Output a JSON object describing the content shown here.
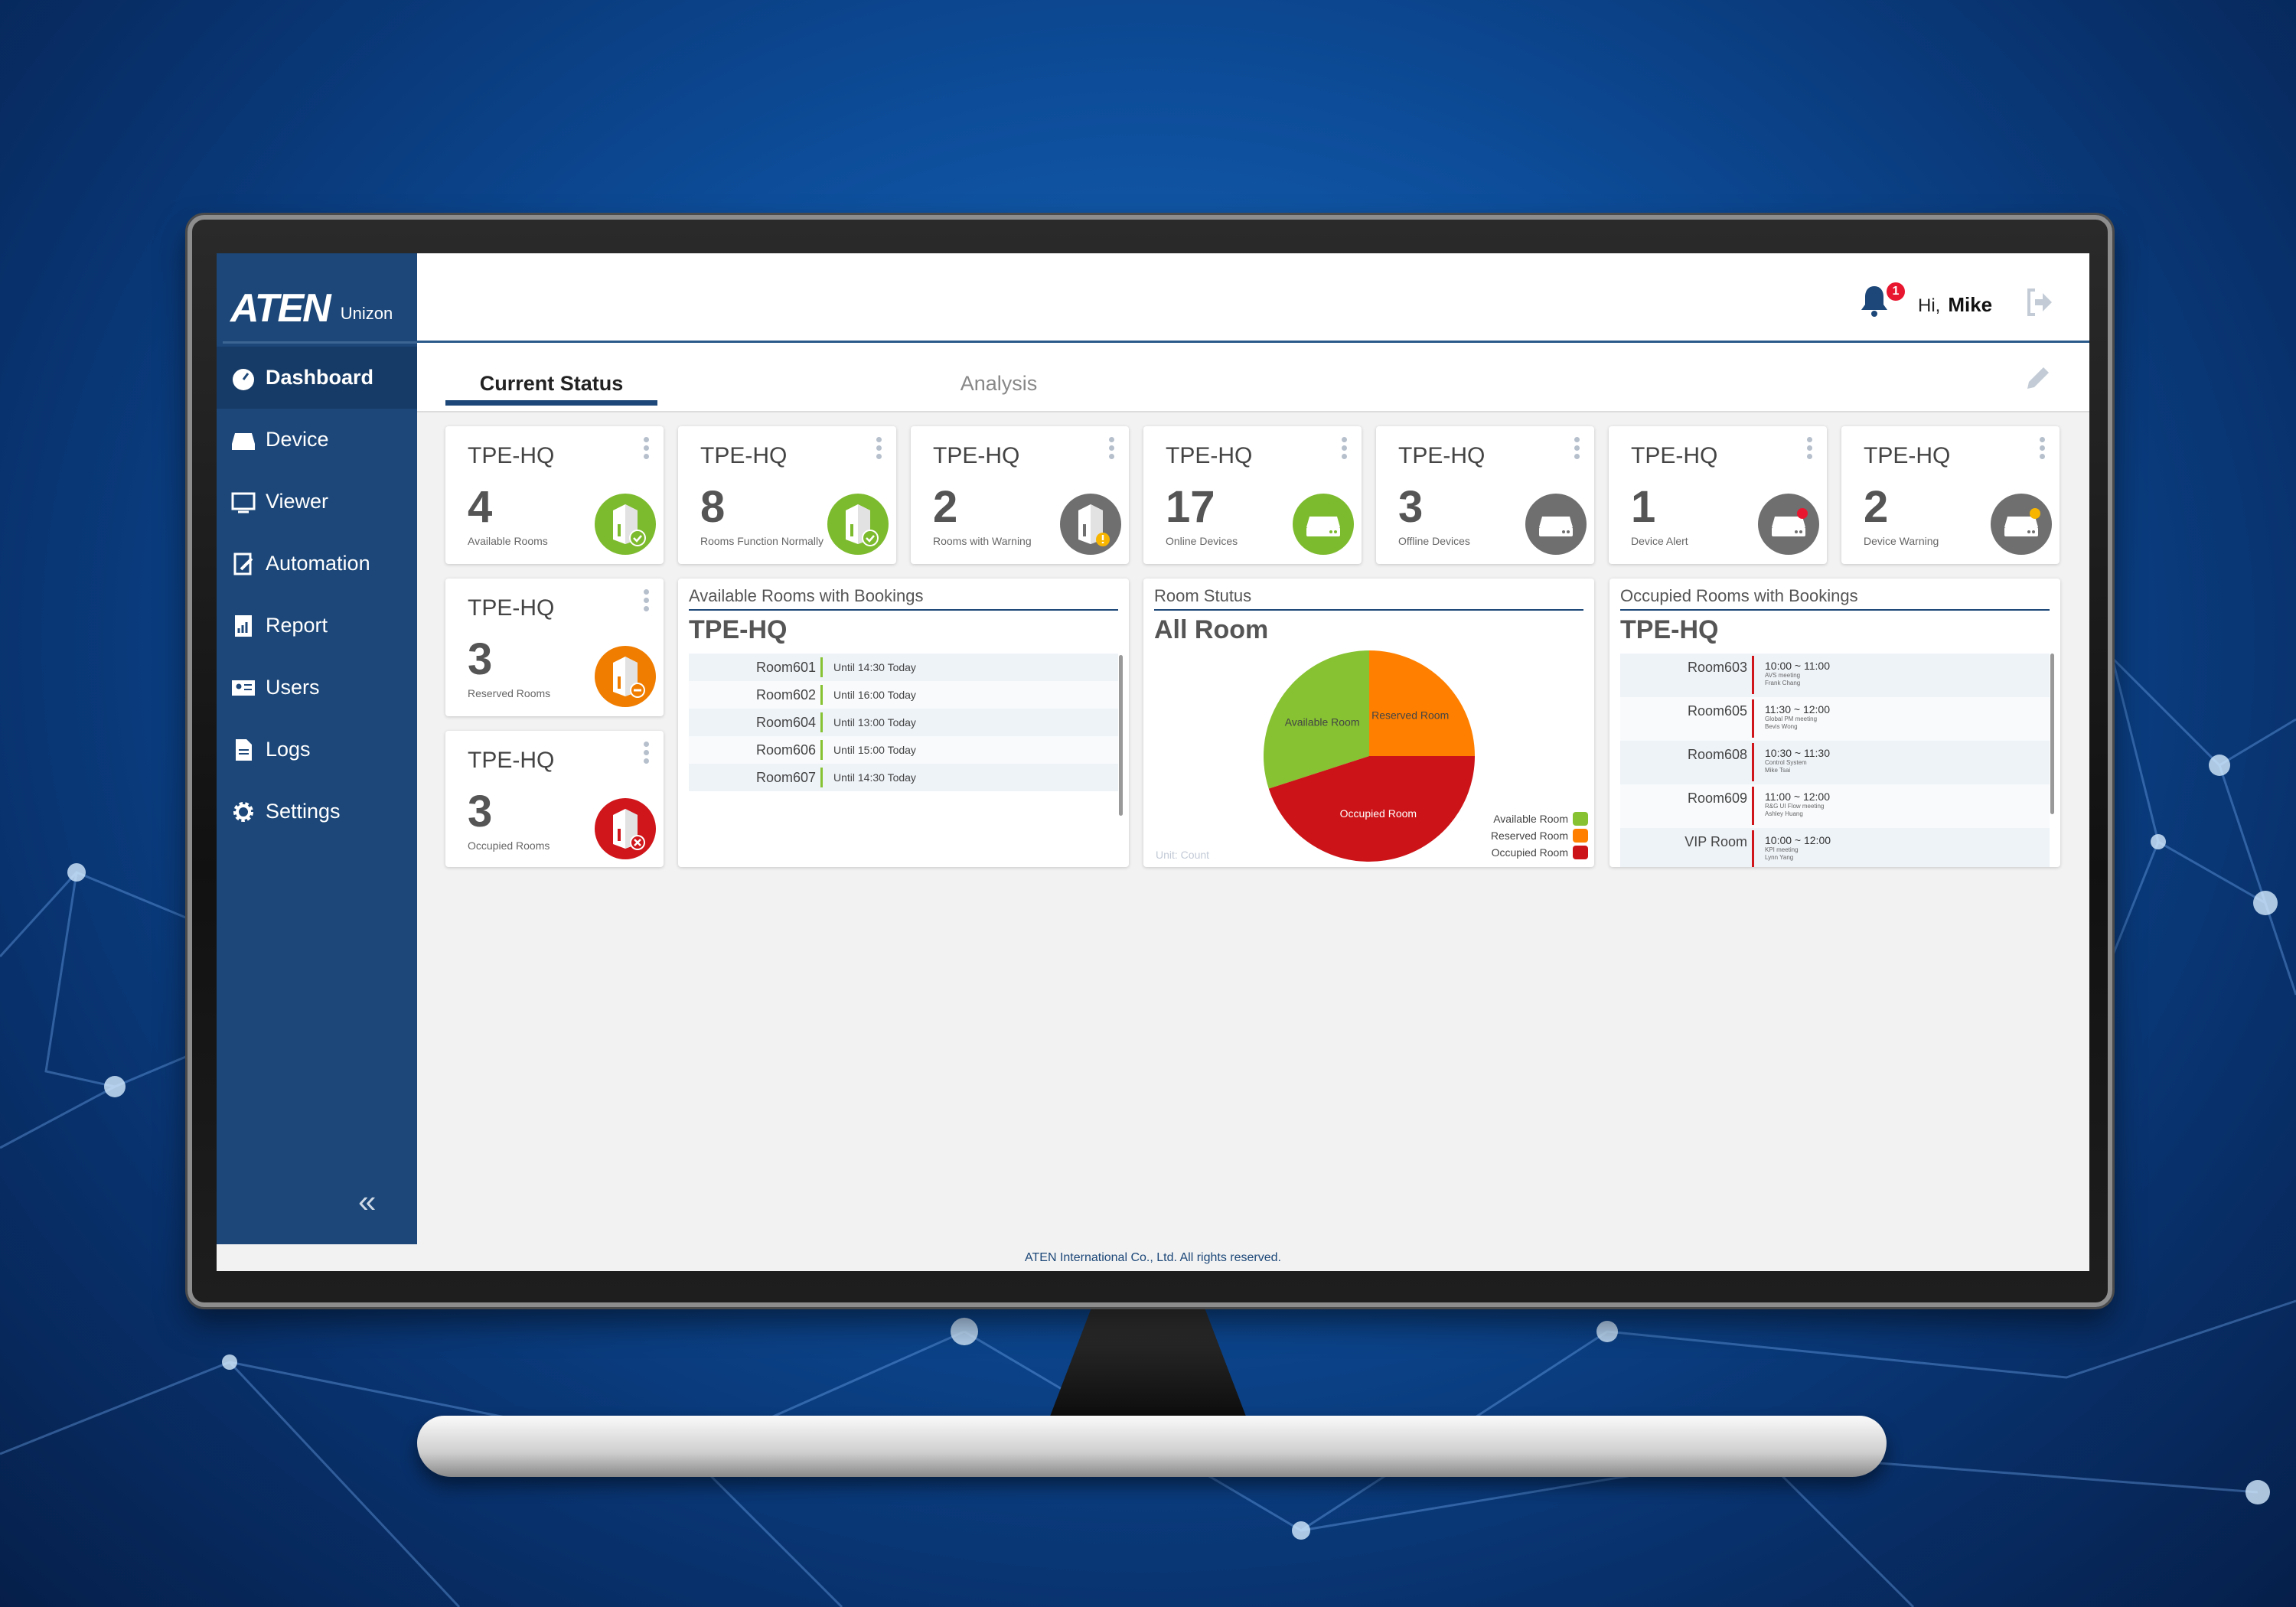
{
  "app": {
    "brand": "ATEN",
    "product": "Unizon"
  },
  "sidebar": {
    "items": [
      {
        "label": "Dashboard",
        "icon": "dashboard-icon",
        "active": true
      },
      {
        "label": "Device",
        "icon": "device-icon"
      },
      {
        "label": "Viewer",
        "icon": "viewer-icon"
      },
      {
        "label": "Automation",
        "icon": "automation-icon"
      },
      {
        "label": "Report",
        "icon": "report-icon"
      },
      {
        "label": "Users",
        "icon": "users-icon"
      },
      {
        "label": "Logs",
        "icon": "logs-icon"
      },
      {
        "label": "Settings",
        "icon": "gear-icon"
      }
    ],
    "collapse_label": "«"
  },
  "header": {
    "notification_count": "1",
    "greeting": "Hi,",
    "user": "Mike"
  },
  "tabs": [
    {
      "label": "Current Status",
      "active": true
    },
    {
      "label": "Analysis"
    }
  ],
  "cards": [
    {
      "title": "TPE-HQ",
      "value": "4",
      "label": "Available Rooms",
      "icon": "room",
      "color": "#7dbb2e",
      "badge": "check"
    },
    {
      "title": "TPE-HQ",
      "value": "8",
      "label": "Rooms Function Normally",
      "icon": "room",
      "color": "#7dbb2e",
      "badge": "check"
    },
    {
      "title": "TPE-HQ",
      "value": "2",
      "label": "Rooms with Warning",
      "icon": "room",
      "color": "#6f6f6f",
      "badge": "warning"
    },
    {
      "title": "TPE-HQ",
      "value": "17",
      "label": "Online Devices",
      "icon": "device",
      "color": "#7dbb2e",
      "badge": "none"
    },
    {
      "title": "TPE-HQ",
      "value": "3",
      "label": "Offline Devices",
      "icon": "device",
      "color": "#6f6f6f",
      "badge": "none"
    },
    {
      "title": "TPE-HQ",
      "value": "1",
      "label": "Device Alert",
      "icon": "device",
      "color": "#6f6f6f",
      "badge": "alert"
    },
    {
      "title": "TPE-HQ",
      "value": "2",
      "label": "Device Warning",
      "icon": "device",
      "color": "#6f6f6f",
      "badge": "warning"
    },
    {
      "title": "TPE-HQ",
      "value": "3",
      "label": "Reserved Rooms",
      "icon": "room",
      "color": "#f07d00",
      "badge": "minus"
    },
    {
      "title": "TPE-HQ",
      "value": "3",
      "label": "Occupied Rooms",
      "icon": "room",
      "color": "#d0161b",
      "badge": "cross"
    }
  ],
  "available_panel": {
    "heading": "Available Rooms with Bookings",
    "site": "TPE-HQ",
    "rows": [
      {
        "room": "Room601",
        "until": "Until 14:30 Today"
      },
      {
        "room": "Room602",
        "until": "Until 16:00 Today"
      },
      {
        "room": "Room604",
        "until": "Until 13:00 Today"
      },
      {
        "room": "Room606",
        "until": "Until 15:00 Today"
      },
      {
        "room": "Room607",
        "until": "Until 14:30 Today"
      }
    ]
  },
  "status_panel": {
    "heading": "Room Stutus",
    "site": "All Room",
    "unit": "Unit: Count"
  },
  "occupied_panel": {
    "heading": "Occupied Rooms with Bookings",
    "site": "TPE-HQ",
    "rows": [
      {
        "room": "Room603",
        "time": "10:00 ~ 11:00",
        "meeting": "AVS meeting",
        "host": "Frank Chang"
      },
      {
        "room": "Room605",
        "time": "11:30 ~ 12:00",
        "meeting": "Global PM meeting",
        "host": "Bevis Wong"
      },
      {
        "room": "Room608",
        "time": "10:30 ~ 11:30",
        "meeting": "Control System",
        "host": "Mike Tsai"
      },
      {
        "room": "Room609",
        "time": "11:00 ~ 12:00",
        "meeting": "R&G UI Flow meeting",
        "host": "Ashley Huang"
      },
      {
        "room": "VIP Room",
        "time": "10:00 ~ 12:00",
        "meeting": "KPI meeting",
        "host": "Lynn Yang"
      }
    ]
  },
  "chart_data": {
    "type": "pie",
    "title": "All Room",
    "unit": "Unit: Count",
    "categories": [
      "Available Room",
      "Reserved Room",
      "Occupied Room"
    ],
    "values": [
      30,
      25,
      45
    ],
    "colors": [
      "#86c232",
      "#ff8000",
      "#cc1418"
    ],
    "legend": "bottom-right"
  },
  "footer": {
    "text": "ATEN International Co., Ltd. All rights reserved."
  }
}
